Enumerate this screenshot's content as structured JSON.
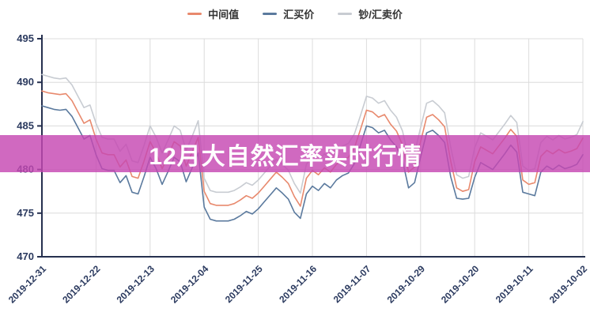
{
  "page": {
    "background": "#ffffff"
  },
  "legend": {
    "items": [
      {
        "label": "中间值",
        "color": "#e8896d"
      },
      {
        "label": "汇买价",
        "color": "#5b7a9e"
      },
      {
        "label": "钞/汇卖价",
        "color": "#c8ccd2"
      }
    ]
  },
  "overlay": {
    "title": "12月大自然汇率实时行情",
    "background_rgba": "rgba(198,72,178,0.82)",
    "text_color": "#ffffff"
  },
  "chart_data": {
    "type": "line",
    "title": "",
    "xlabel": "",
    "ylabel": "",
    "ylim": [
      470,
      495
    ],
    "y_ticks": [
      470,
      475,
      480,
      485,
      490,
      495
    ],
    "grid": true,
    "legend_position": "top",
    "x_note": "daily data, newest date on the left, oldest on the right",
    "x_tick_labels": [
      "2019-12-31",
      "2019-12-22",
      "2019-12-13",
      "2019-12-04",
      "2019-11-25",
      "2019-11-16",
      "2019-11-07",
      "2019-10-29",
      "2019-10-20",
      "2019-10-11",
      "2019-10-02"
    ],
    "x_tick_indices": [
      0,
      9,
      18,
      27,
      36,
      45,
      54,
      63,
      72,
      81,
      90
    ],
    "axis_color": "#26304f",
    "grid_color": "#dcdcdc",
    "tick_label_color": "#2b3a5f",
    "series": [
      {
        "name": "钞/汇卖价",
        "color": "#c8ccd2",
        "values": [
          490.9,
          490.7,
          490.5,
          490.4,
          490.5,
          489.7,
          488.4,
          487.1,
          487.4,
          485.3,
          483.7,
          483.5,
          483.5,
          482.1,
          482.9,
          481.0,
          480.8,
          482.8,
          485.0,
          483.7,
          481.9,
          483.4,
          485.0,
          484.5,
          482.2,
          483.8,
          485.6,
          479.0,
          477.6,
          477.4,
          477.4,
          477.4,
          477.6,
          478.0,
          478.5,
          478.2,
          478.8,
          479.6,
          480.4,
          481.2,
          480.6,
          479.9,
          478.4,
          477.3,
          480.6,
          481.5,
          481.0,
          481.8,
          481.3,
          482.2,
          482.7,
          483.0,
          484.1,
          486.2,
          488.4,
          488.2,
          487.6,
          487.9,
          486.8,
          486.0,
          484.4,
          481.3,
          481.9,
          484.8,
          487.6,
          487.9,
          487.3,
          486.5,
          482.6,
          479.4,
          479.0,
          479.2,
          482.5,
          484.2,
          483.8,
          483.4,
          484.3,
          485.2,
          486.2,
          485.4,
          480.4,
          479.9,
          480.1,
          483.1,
          483.8,
          483.4,
          483.9,
          483.5,
          483.7,
          484.0,
          485.5
        ]
      },
      {
        "name": "中间值",
        "color": "#e8896d",
        "values": [
          489.0,
          488.8,
          488.7,
          488.6,
          488.7,
          487.9,
          486.6,
          485.3,
          485.7,
          483.5,
          481.9,
          481.7,
          481.7,
          480.3,
          481.1,
          479.2,
          479.0,
          481.0,
          483.2,
          481.9,
          480.1,
          481.6,
          483.2,
          482.7,
          480.4,
          482.0,
          483.7,
          477.5,
          476.1,
          475.9,
          475.9,
          475.9,
          476.1,
          476.5,
          477.0,
          476.7,
          477.3,
          478.1,
          478.9,
          479.7,
          479.1,
          478.4,
          476.9,
          475.8,
          479.0,
          479.9,
          479.4,
          480.2,
          479.7,
          480.6,
          481.1,
          481.4,
          482.5,
          484.6,
          486.8,
          486.6,
          486.0,
          486.3,
          485.2,
          484.4,
          482.8,
          479.7,
          480.3,
          483.2,
          486.0,
          486.3,
          485.7,
          484.9,
          481.0,
          477.9,
          477.5,
          477.7,
          480.9,
          482.6,
          482.2,
          481.8,
          482.7,
          483.6,
          484.6,
          483.8,
          478.8,
          478.3,
          478.5,
          481.5,
          482.2,
          481.8,
          482.3,
          481.9,
          482.1,
          482.4,
          483.6
        ]
      },
      {
        "name": "汇买价",
        "color": "#5b7a9e",
        "values": [
          487.3,
          487.1,
          486.9,
          486.8,
          486.9,
          486.1,
          484.8,
          483.5,
          483.9,
          481.7,
          480.1,
          479.9,
          479.9,
          478.5,
          479.3,
          477.4,
          477.2,
          479.2,
          481.4,
          480.1,
          478.3,
          479.8,
          481.4,
          480.9,
          478.6,
          480.2,
          481.9,
          475.7,
          474.3,
          474.1,
          474.1,
          474.1,
          474.3,
          474.7,
          475.2,
          474.9,
          475.5,
          476.3,
          477.1,
          477.9,
          477.3,
          476.6,
          475.1,
          474.4,
          477.2,
          478.1,
          477.6,
          478.4,
          477.9,
          478.8,
          479.3,
          479.6,
          480.7,
          482.8,
          485.0,
          484.8,
          484.2,
          484.5,
          483.4,
          482.6,
          481.0,
          477.9,
          478.5,
          481.4,
          484.2,
          484.5,
          483.9,
          483.1,
          479.2,
          476.7,
          476.6,
          476.7,
          479.1,
          480.8,
          480.4,
          480.0,
          480.9,
          481.8,
          482.8,
          482.0,
          477.4,
          477.2,
          477.0,
          479.7,
          480.4,
          480.0,
          480.5,
          480.1,
          480.3,
          480.6,
          481.7
        ]
      }
    ]
  }
}
